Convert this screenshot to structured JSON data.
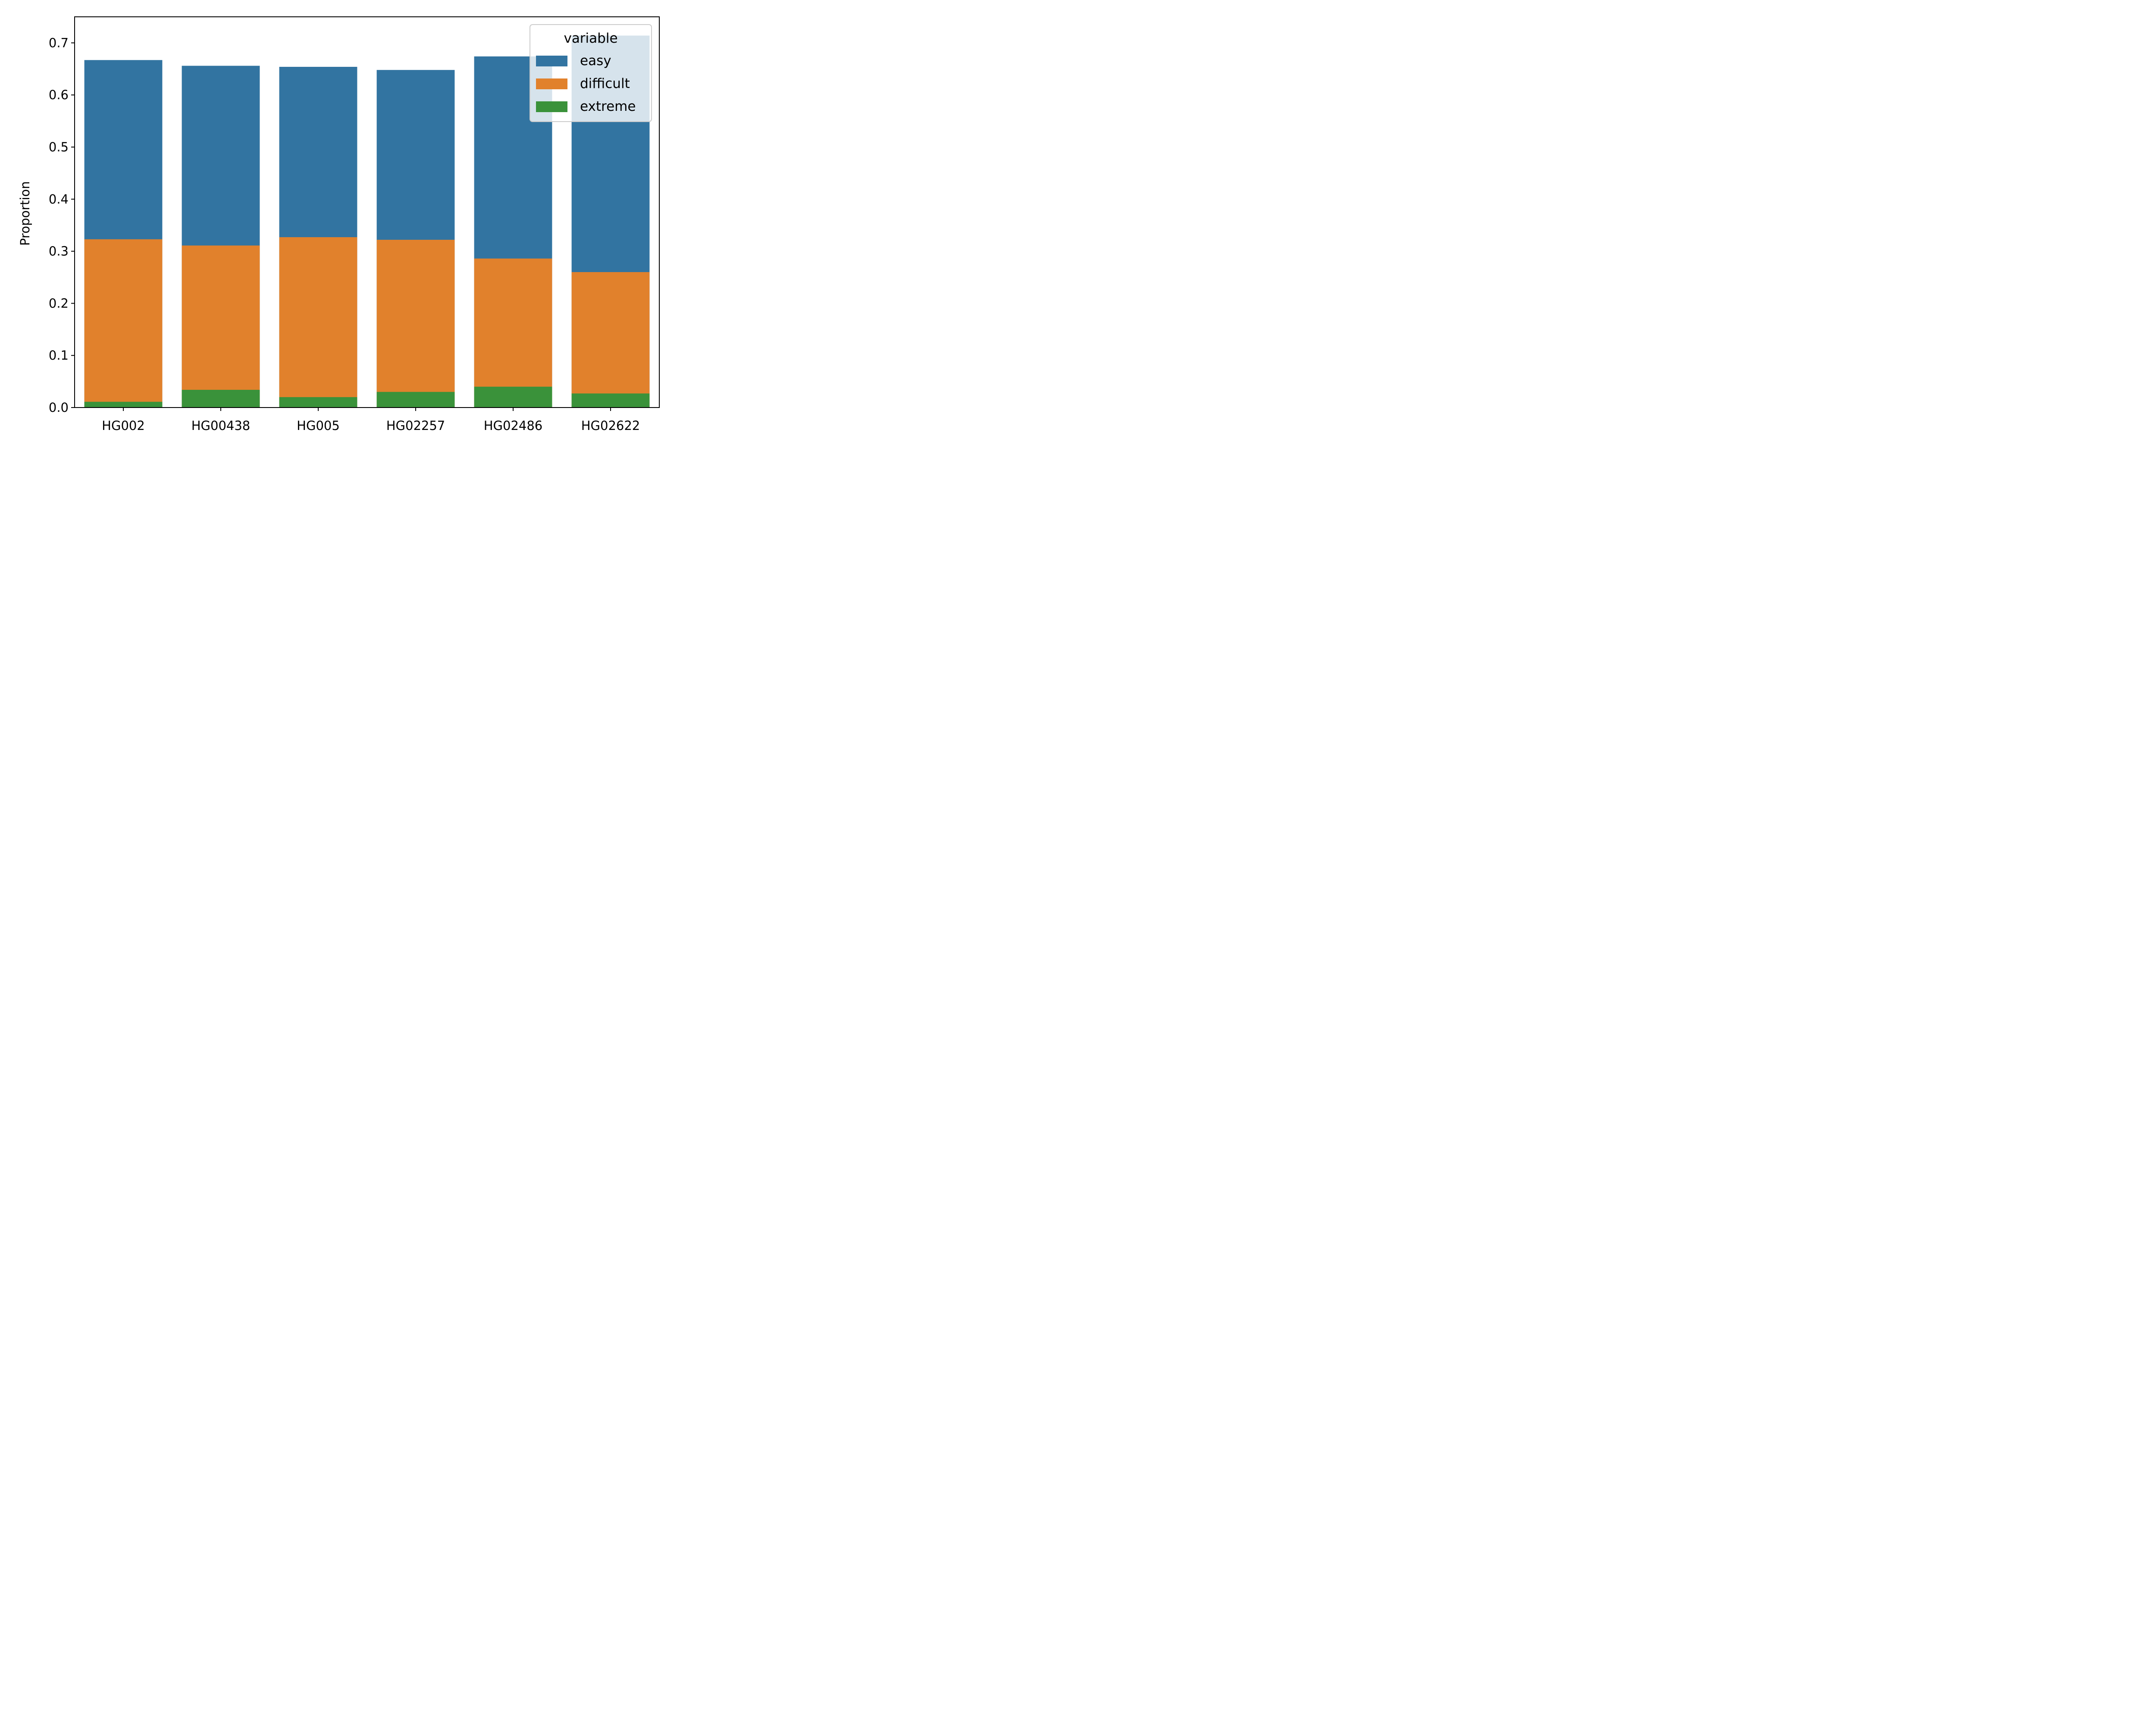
{
  "chart_data": {
    "type": "bar",
    "stacked_overlay": true,
    "categories": [
      "HG002",
      "HG00438",
      "HG005",
      "HG02257",
      "HG02486",
      "HG02622"
    ],
    "series": [
      {
        "name": "easy",
        "color": "#3274a1",
        "values": [
          0.667,
          0.656,
          0.654,
          0.648,
          0.674,
          0.714
        ]
      },
      {
        "name": "difficult",
        "color": "#e1812c",
        "values": [
          0.323,
          0.311,
          0.327,
          0.322,
          0.286,
          0.26
        ]
      },
      {
        "name": "extreme",
        "color": "#3a923a",
        "values": [
          0.011,
          0.034,
          0.02,
          0.03,
          0.04,
          0.027
        ]
      }
    ],
    "xlabel": "",
    "ylabel": "Proportion",
    "ylim": [
      0,
      0.75
    ],
    "yticks": [
      0.0,
      0.1,
      0.2,
      0.3,
      0.4,
      0.5,
      0.6,
      0.7
    ],
    "ytick_labels": [
      "0.0",
      "0.1",
      "0.2",
      "0.3",
      "0.4",
      "0.5",
      "0.6",
      "0.7"
    ],
    "legend": {
      "title": "variable",
      "placement": "top-right"
    },
    "grid": false
  }
}
